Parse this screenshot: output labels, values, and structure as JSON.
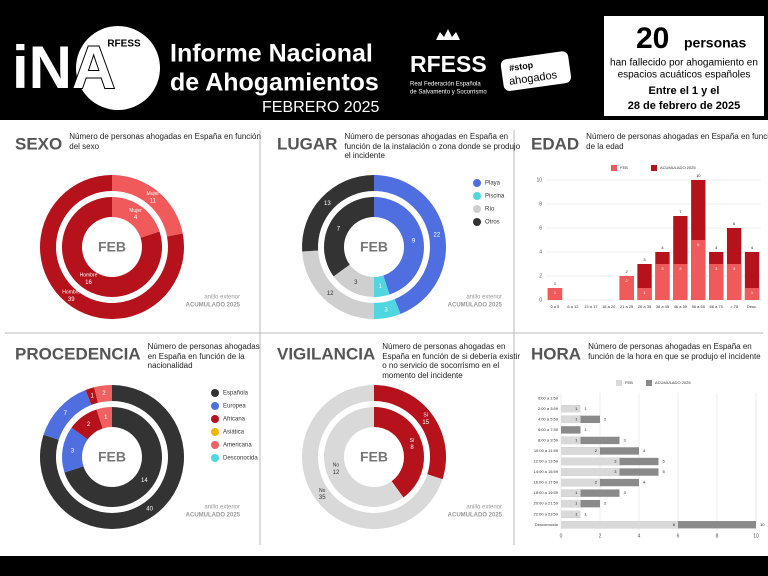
{
  "header": {
    "logo": "iNA",
    "logo_badge": "RFESS",
    "title": [
      "Informe Nacional",
      "de Ahogamientos"
    ],
    "period": "FEBRERO 2025",
    "org": "RFESS",
    "org_name": [
      "Real Federación Española",
      "de Salvamento y Socorrismo"
    ],
    "campaign": [
      "#stop",
      "ahogados"
    ],
    "count": 20,
    "count_unit": "personas",
    "count_text": [
      "han fallecido por ahogamiento en",
      "espacios acuáticos españoles"
    ],
    "dates": [
      "Entre el 1 y el",
      "28 de febrero de 2025"
    ]
  },
  "chart_data": [
    {
      "type": "donut",
      "title": "SEXO",
      "subtitle": "Número de personas ahogadas en España en función del sexo",
      "ring_note": "anillo exterior",
      "legend": false,
      "categories": [
        "Mujer",
        "Hombre"
      ],
      "colors": [
        "#f05a5a",
        "#b5121b"
      ],
      "series": [
        {
          "name": "FEB",
          "values": [
            4,
            16
          ]
        },
        {
          "name": "ACUMULADO 2025",
          "values": [
            11,
            39
          ]
        }
      ]
    },
    {
      "type": "donut",
      "title": "LUGAR",
      "subtitle": "Número de personas ahogadas en España en función de la instalación o zona donde se produjo el incidente",
      "ring_note": "anillo exterior",
      "legend": true,
      "categories": [
        "Playa",
        "Piscina",
        "Río",
        "Otros"
      ],
      "colors": [
        "#4f6fe0",
        "#4fd6e0",
        "#cfcfcf",
        "#333333"
      ],
      "series": [
        {
          "name": "FEB",
          "values": [
            9,
            1,
            3,
            7
          ]
        },
        {
          "name": "ACUMULADO 2025",
          "values": [
            22,
            3,
            12,
            13
          ]
        }
      ]
    },
    {
      "type": "bar",
      "title": "EDAD",
      "subtitle": "Número de personas ahogadas en España en función de la edad",
      "overlay": true,
      "categories": [
        "0 a 5",
        "6 a 12",
        "13 a 17",
        "18 a 20",
        "21 a 25",
        "26 a 35",
        "36 a 45",
        "46 a 55",
        "56 a 65",
        "66 a 75",
        "> 75",
        "Desc."
      ],
      "series": [
        {
          "name": "FEB",
          "color": "#f05a5a",
          "values": [
            1,
            0,
            0,
            0,
            2,
            1,
            3,
            3,
            5,
            3,
            3,
            1
          ]
        },
        {
          "name": "ACUMULADO 2025",
          "color": "#b5121b",
          "values": [
            1,
            0,
            0,
            0,
            2,
            3,
            4,
            7,
            10,
            4,
            6,
            4
          ]
        }
      ],
      "ylim": [
        0,
        10
      ],
      "yticks": [
        0,
        2,
        4,
        6,
        8,
        10
      ]
    },
    {
      "type": "donut",
      "title": "PROCEDENCIA",
      "subtitle": "Número de personas ahogadas en España en función de la nacionalidad",
      "ring_note": "anillo exterior",
      "legend": true,
      "categories": [
        "Española",
        "Europea",
        "Africana",
        "Asiática",
        "Americana",
        "Desconocida"
      ],
      "colors": [
        "#333333",
        "#4f6fe0",
        "#b5121b",
        "#f2b400",
        "#f06060",
        "#4fd6e0"
      ],
      "series": [
        {
          "name": "FEB",
          "values": [
            14,
            3,
            2,
            0,
            1,
            0
          ]
        },
        {
          "name": "ACUMULADO 2025",
          "values": [
            40,
            7,
            1,
            0,
            2,
            0
          ]
        }
      ]
    },
    {
      "type": "donut",
      "title": "VIGILANCIA",
      "subtitle": "Número de personas ahogadas en España en función de si debería existir o no servicio de socorrismo en el momento del incidente",
      "ring_note": "anillo exterior",
      "legend": false,
      "categories": [
        "Sí",
        "No"
      ],
      "colors": [
        "#b5121b",
        "#d9d9d9"
      ],
      "series": [
        {
          "name": "FEB",
          "values": [
            8,
            12
          ]
        },
        {
          "name": "ACUMULADO 2025",
          "values": [
            15,
            35
          ]
        }
      ]
    },
    {
      "type": "hbar",
      "title": "HORA",
      "subtitle": "Número de personas ahogadas en España en función de la hora en que se produjo el incidente",
      "overlay": true,
      "categories": [
        "0:00 a 1:59",
        "2:00 a 3:59",
        "4:00 a 5:59",
        "6:00 a 7:59",
        "8:00 a 9:59",
        "10:00 a 11:59",
        "12:00 a 13:59",
        "14:00 a 15:59",
        "16:00 a 17:59",
        "18:00 a 19:59",
        "20:00 a 21:59",
        "22:00 a 23:59",
        "Desconocido"
      ],
      "series": [
        {
          "name": "FEB",
          "color": "#d9d9d9",
          "values": [
            0,
            1,
            1,
            0,
            1,
            2,
            3,
            3,
            2,
            1,
            1,
            1,
            6
          ]
        },
        {
          "name": "ACUMULADO 2025",
          "color": "#8a8a8a",
          "values": [
            0,
            1,
            2,
            1,
            3,
            4,
            5,
            5,
            4,
            3,
            2,
            1,
            10
          ]
        }
      ],
      "xlim": [
        0,
        10
      ],
      "xticks": [
        0,
        2,
        4,
        6,
        8,
        10
      ]
    }
  ]
}
